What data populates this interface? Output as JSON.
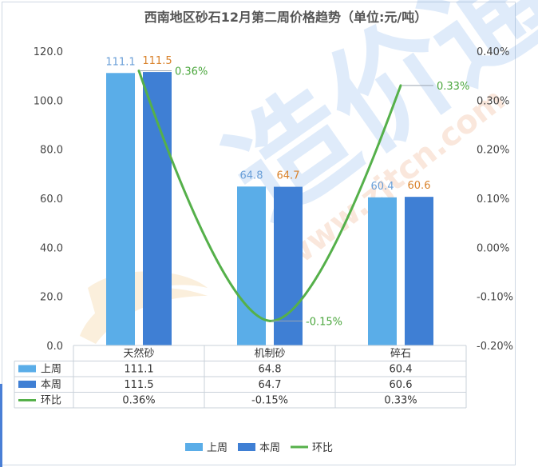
{
  "chart_data": {
    "type": "bar",
    "title": "西南地区砂石12月第二周价格趋势（单位:元/吨）",
    "categories": [
      "天然砂",
      "机制砂",
      "碎石"
    ],
    "series": [
      {
        "name": "上周",
        "kind": "bar",
        "axis": "left",
        "values": [
          111.1,
          64.8,
          60.4
        ],
        "labels": [
          "111.1",
          "64.8",
          "60.4"
        ],
        "color": "#5aade8",
        "label_color": "#6a9fd8"
      },
      {
        "name": "本周",
        "kind": "bar",
        "axis": "left",
        "values": [
          111.5,
          64.7,
          60.6
        ],
        "labels": [
          "111.5",
          "64.7",
          "60.6"
        ],
        "color": "#3f7fd4",
        "label_color": "#d9822b"
      },
      {
        "name": "环比",
        "kind": "line",
        "axis": "right",
        "values": [
          0.36,
          -0.15,
          0.33
        ],
        "labels": [
          "0.36%",
          "-0.15%",
          "0.33%"
        ],
        "color": "#55b04a",
        "label_color": "#4aa63c"
      }
    ],
    "left_axis": {
      "min": 0,
      "max": 120,
      "ticks": [
        "0.0",
        "20.0",
        "40.0",
        "60.0",
        "80.0",
        "100.0",
        "120.0"
      ]
    },
    "right_axis": {
      "min": -0.2,
      "max": 0.4,
      "ticks": [
        "-0.20%",
        "-0.10%",
        "0.00%",
        "0.10%",
        "0.20%",
        "0.30%",
        "0.40%"
      ]
    },
    "grid": false,
    "legend_position": "bottom",
    "data_table": {
      "rows": [
        {
          "series": "上周",
          "cells": [
            "111.1",
            "64.8",
            "60.4"
          ]
        },
        {
          "series": "本周",
          "cells": [
            "111.5",
            "64.7",
            "60.6"
          ]
        },
        {
          "series": "环比",
          "cells": [
            "0.36%",
            "-0.15%",
            "0.33%"
          ]
        }
      ]
    },
    "watermark": {
      "text": "www.zjtcn.com",
      "brand": "造价通"
    }
  }
}
